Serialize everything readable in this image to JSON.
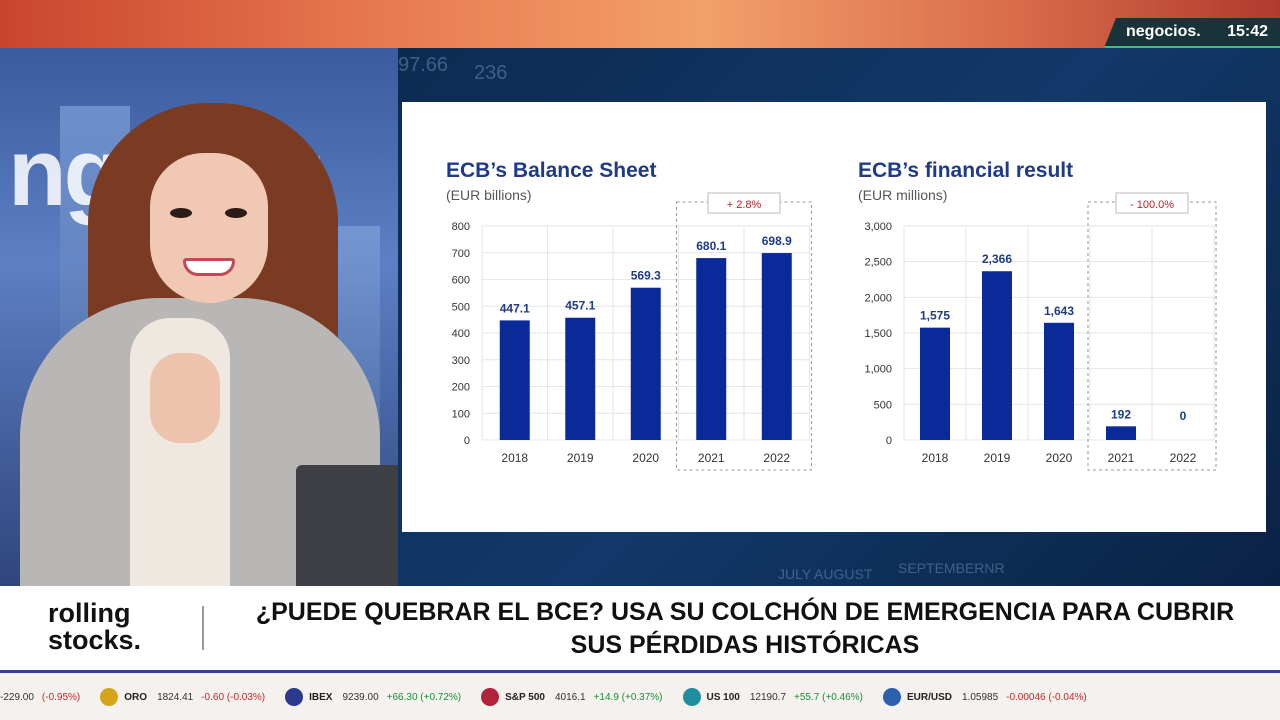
{
  "brand": {
    "name": "negocios.",
    "time": "15:42"
  },
  "studio": {
    "backdrop_word": "ngcto"
  },
  "background_numbers": [
    "97.66",
    "236",
    "JULY AUGUST",
    "SEPTEMBERNR"
  ],
  "chart_data": [
    {
      "type": "bar",
      "title": "ECB’s Balance Sheet",
      "subtitle": "(EUR billions)",
      "categories": [
        "2018",
        "2019",
        "2020",
        "2021",
        "2022"
      ],
      "values": [
        447.1,
        457.1,
        569.3,
        680.1,
        698.9
      ],
      "value_labels": [
        "447.1",
        "457.1",
        "569.3",
        "680.1",
        "698.9"
      ],
      "ylim": [
        0,
        800
      ],
      "yticks": [
        "0",
        "100",
        "200",
        "300",
        "400",
        "500",
        "600",
        "700",
        "800"
      ],
      "annotation": "+ 2.8%",
      "color": "#0b2a9a",
      "grid": true
    },
    {
      "type": "bar",
      "title": "ECB’s financial result",
      "subtitle": "(EUR millions)",
      "categories": [
        "2018",
        "2019",
        "2020",
        "2021",
        "2022"
      ],
      "values": [
        1575,
        2366,
        1643,
        192,
        0
      ],
      "value_labels": [
        "1,575",
        "2,366",
        "1,643",
        "192",
        "0"
      ],
      "ylim": [
        0,
        3000
      ],
      "yticks": [
        "0",
        "500",
        "1,000",
        "1,500",
        "2,000",
        "2,500",
        "3,000"
      ],
      "annotation": "- 100.0%",
      "color": "#0b2a9a",
      "grid": true
    }
  ],
  "lower_third": {
    "show_line1": "rolling",
    "show_line2": "stocks.",
    "headline_line1": "¿PUEDE QUEBRAR EL BCE? USA SU COLCHÓN DE EMERGENCIA PARA CUBRIR",
    "headline_line2": "SUS PÉRDIDAS HISTÓRICAS"
  },
  "ticker": [
    {
      "name": "",
      "value": "-229.00",
      "change": "(-0.95%)",
      "neg": true,
      "icon_color": "#ffffff"
    },
    {
      "name": "ORO",
      "value": "1824.41",
      "change": "-0.60 (-0.03%)",
      "neg": true,
      "icon_color": "#d4a51c"
    },
    {
      "name": "IBEX",
      "value": "9239.00",
      "change": "+66.30 (+0.72%)",
      "neg": false,
      "icon_color": "#2b3a8f"
    },
    {
      "name": "S&P 500",
      "value": "4016.1",
      "change": "+14.9 (+0.37%)",
      "neg": false,
      "icon_color": "#b0233a"
    },
    {
      "name": "US 100",
      "value": "12190.7",
      "change": "+55.7 (+0.46%)",
      "neg": false,
      "icon_color": "#1f8fa0"
    },
    {
      "name": "EUR/USD",
      "value": "1.05985",
      "change": "-0.00046 (-0.04%)",
      "neg": true,
      "icon_color": "#2b5fb0"
    }
  ]
}
